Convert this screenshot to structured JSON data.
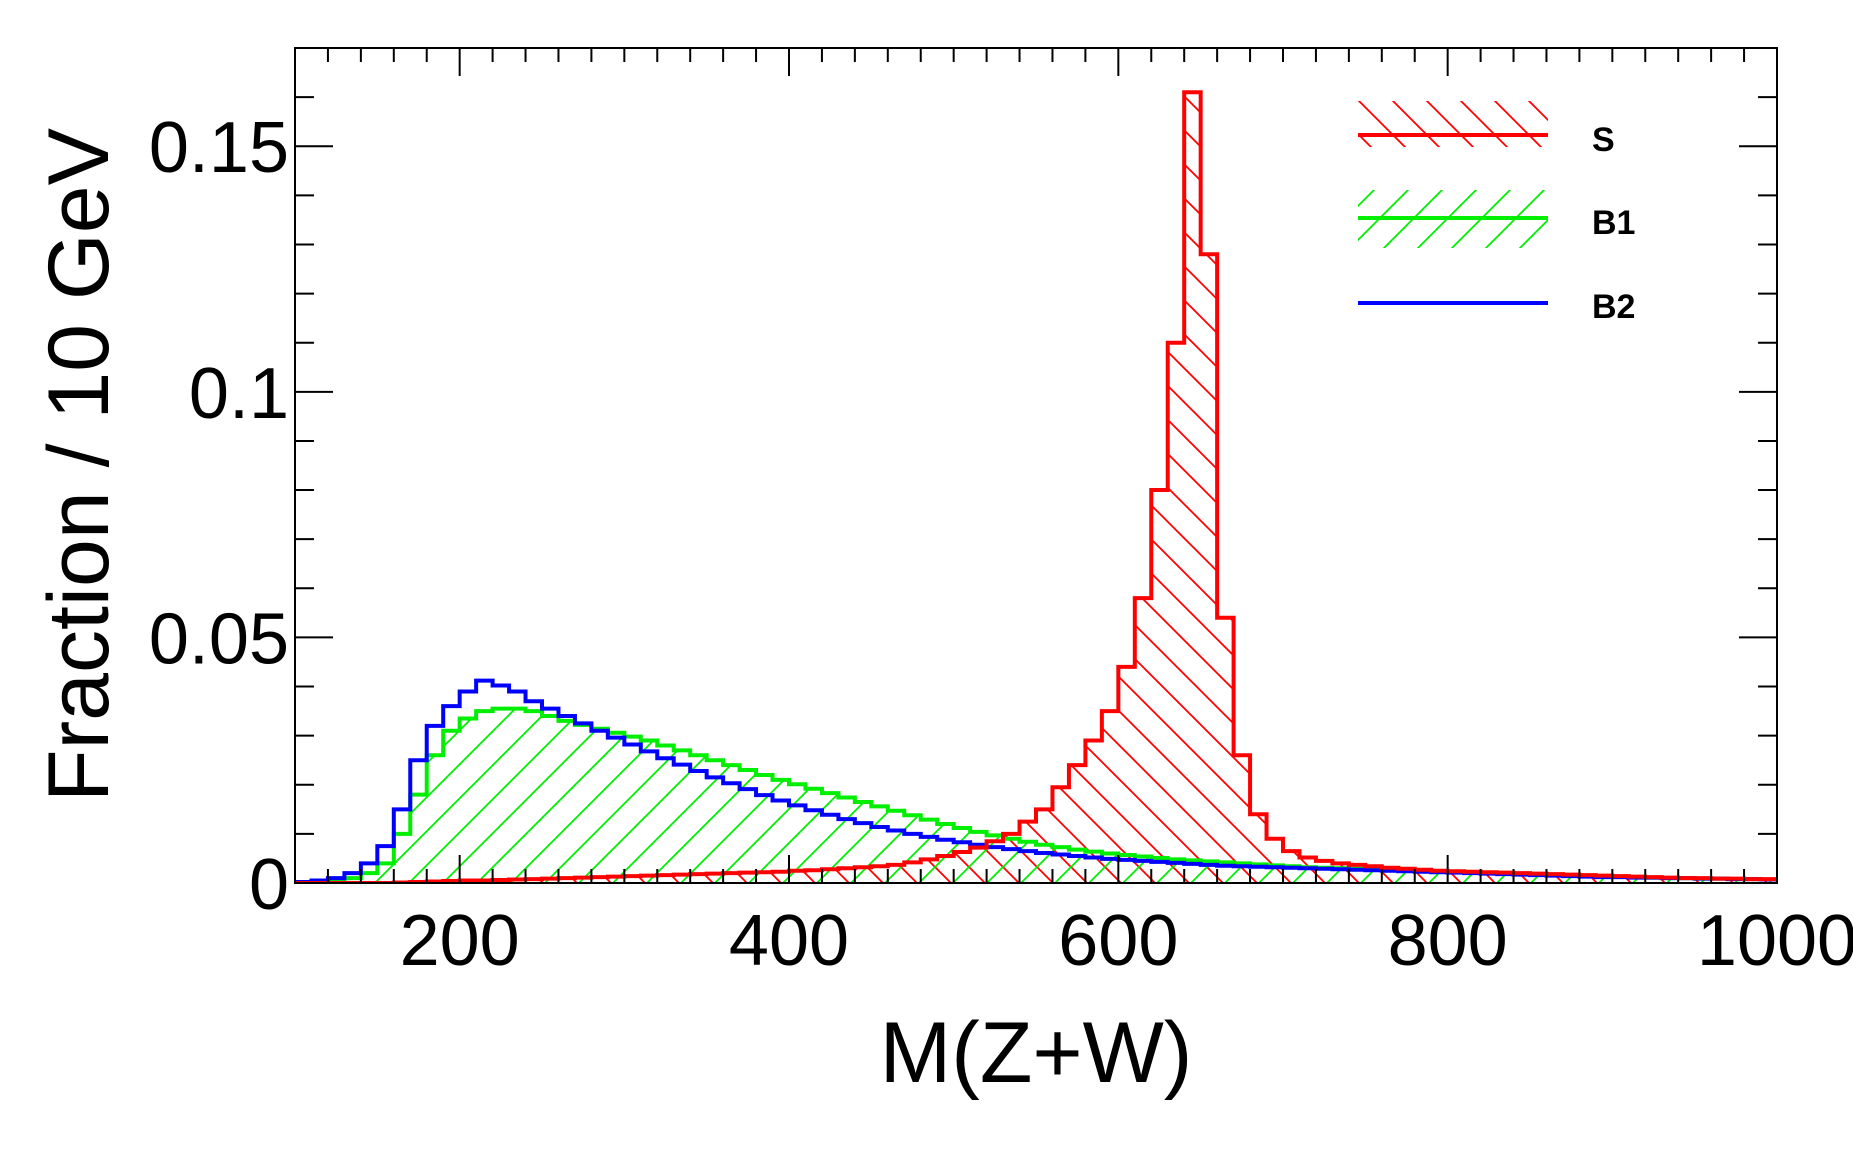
{
  "chart_data": {
    "type": "histogram",
    "title": "",
    "xlabel": "M(Z+W)",
    "ylabel": "Fraction / 10 GeV",
    "xlim": [
      100,
      1000
    ],
    "ylim": [
      0,
      0.17
    ],
    "bin_width": 10,
    "x_ticks": [
      200,
      400,
      600,
      800,
      1000
    ],
    "x_tick_labels": [
      "200",
      "400",
      "600",
      "800",
      "1000"
    ],
    "y_ticks": [
      0,
      0.05,
      0.1,
      0.15
    ],
    "y_tick_labels": [
      "0",
      "0.05",
      "0.1",
      "0.15"
    ],
    "legend_position": "top-right",
    "colors": {
      "S": "#ff0000",
      "B1": "#00ee00",
      "B2": "#0000ff"
    },
    "series": [
      {
        "name": "S",
        "label": "S",
        "color": "#ff0000",
        "style": "hatched-back",
        "values": [
          0,
          0,
          0,
          0,
          0,
          0,
          0.0001,
          0.0002,
          0.0003,
          0.0004,
          0.0005,
          0.0005,
          0.0006,
          0.0007,
          0.0008,
          0.0009,
          0.001,
          0.0011,
          0.0012,
          0.0013,
          0.0014,
          0.0015,
          0.0016,
          0.0017,
          0.0018,
          0.0019,
          0.002,
          0.0021,
          0.0022,
          0.0023,
          0.0025,
          0.0026,
          0.0028,
          0.003,
          0.0032,
          0.0034,
          0.0037,
          0.0042,
          0.0048,
          0.0055,
          0.0063,
          0.0072,
          0.0085,
          0.01,
          0.0125,
          0.015,
          0.0195,
          0.024,
          0.029,
          0.035,
          0.044,
          0.058,
          0.08,
          0.11,
          0.161,
          0.128,
          0.054,
          0.026,
          0.014,
          0.009,
          0.0065,
          0.0052,
          0.0045,
          0.004,
          0.0037,
          0.0034,
          0.0031,
          0.0029,
          0.0027,
          0.0025,
          0.0024,
          0.0023,
          0.0022,
          0.0021,
          0.002,
          0.0019,
          0.0018,
          0.0017,
          0.0016,
          0.0015,
          0.0014,
          0.0013,
          0.0012,
          0.0011,
          0.001,
          0.001,
          0.0009,
          0.0009,
          0.0008,
          0.0008
        ]
      },
      {
        "name": "B1",
        "label": "B1",
        "color": "#00ee00",
        "style": "hatched-forward",
        "values": [
          0,
          0.0002,
          0.0005,
          0.001,
          0.002,
          0.004,
          0.01,
          0.018,
          0.026,
          0.031,
          0.0335,
          0.035,
          0.0355,
          0.0355,
          0.035,
          0.034,
          0.033,
          0.0322,
          0.0314,
          0.0306,
          0.0298,
          0.029,
          0.028,
          0.027,
          0.026,
          0.025,
          0.024,
          0.023,
          0.022,
          0.021,
          0.0201,
          0.0192,
          0.0183,
          0.0174,
          0.0165,
          0.0156,
          0.0147,
          0.0138,
          0.0129,
          0.012,
          0.0112,
          0.0104,
          0.0097,
          0.009,
          0.0084,
          0.0078,
          0.0073,
          0.0068,
          0.0064,
          0.006,
          0.0057,
          0.0054,
          0.0051,
          0.0048,
          0.0046,
          0.0044,
          0.0042,
          0.004,
          0.0038,
          0.0036,
          0.0034,
          0.0032,
          0.0031,
          0.003,
          0.0029,
          0.0028,
          0.0027,
          0.0026,
          0.0025,
          0.0024,
          0.0023,
          0.0022,
          0.0021,
          0.002,
          0.0019,
          0.0018,
          0.0017,
          0.0016,
          0.0015,
          0.0014,
          0.0013,
          0.0012,
          0.0011,
          0.001,
          0.001,
          0.0009,
          0.0009,
          0.0008,
          0.0008,
          0.0007
        ]
      },
      {
        "name": "B2",
        "label": "B2",
        "color": "#0000ff",
        "style": "line",
        "values": [
          0.0002,
          0.0005,
          0.001,
          0.002,
          0.004,
          0.0075,
          0.015,
          0.025,
          0.032,
          0.036,
          0.039,
          0.0412,
          0.0402,
          0.039,
          0.037,
          0.0355,
          0.034,
          0.0325,
          0.031,
          0.0296,
          0.0282,
          0.0268,
          0.0254,
          0.0241,
          0.0228,
          0.0215,
          0.0203,
          0.0191,
          0.0179,
          0.0168,
          0.0158,
          0.0148,
          0.0139,
          0.013,
          0.0122,
          0.0114,
          0.0107,
          0.01,
          0.0094,
          0.0088,
          0.0083,
          0.0078,
          0.0073,
          0.0069,
          0.0065,
          0.0061,
          0.0058,
          0.0055,
          0.0052,
          0.0049,
          0.0047,
          0.0045,
          0.0043,
          0.0041,
          0.0039,
          0.0037,
          0.0035,
          0.0034,
          0.0033,
          0.0032,
          0.0031,
          0.003,
          0.0029,
          0.0028,
          0.0027,
          0.0026,
          0.0025,
          0.0024,
          0.0023,
          0.0022,
          0.0021,
          0.002,
          0.0019,
          0.0018,
          0.0017,
          0.0016,
          0.0015,
          0.0014,
          0.0013,
          0.0012,
          0.0012,
          0.0011,
          0.0011,
          0.001,
          0.001,
          0.0009,
          0.0009,
          0.0008,
          0.0008,
          0.0007
        ]
      }
    ]
  }
}
